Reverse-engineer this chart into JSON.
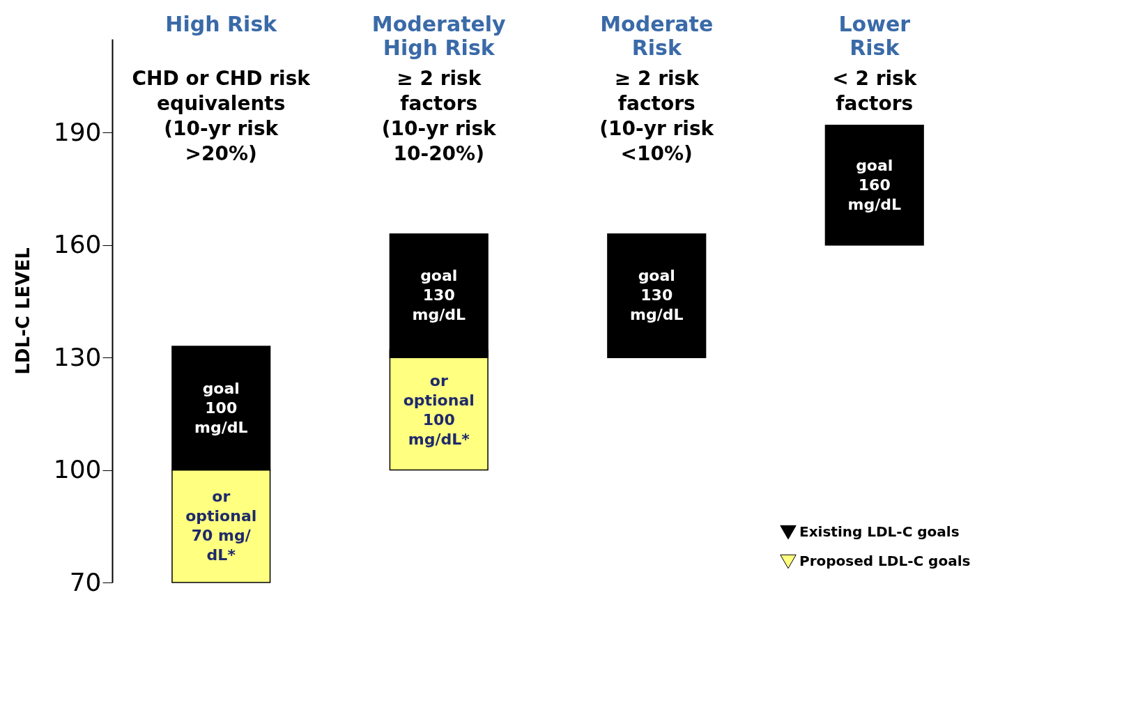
{
  "chart_data": {
    "type": "bar",
    "ylabel": "LDL-C  LEVEL",
    "categories": [
      "High Risk",
      "Moderately\nHigh Risk",
      "Moderate\nRisk",
      "Lower\nRisk"
    ],
    "series": [
      {
        "name": "Proposed LDL-C goals",
        "color": "#ffff80",
        "base": [
          70,
          100,
          null,
          null
        ],
        "values": [
          30,
          32,
          null,
          null
        ],
        "value_labels": [
          "or\noptional\n70 mg/\ndL*",
          "or\noptional\n100\nmg/dL*",
          null,
          null
        ]
      },
      {
        "name": "Existing LDL-C goals",
        "color": "#000000",
        "base": [
          100,
          130,
          130,
          160
        ],
        "values": [
          33,
          33,
          33,
          32
        ],
        "value_labels": [
          "goal\n100\nmg/dL",
          "goal\n130\nmg/dL",
          "goal\n130\nmg/dL",
          "goal\n160\nmg/dL"
        ]
      }
    ],
    "ylim": [
      70,
      215
    ],
    "yticks": [
      70,
      100,
      130,
      160,
      190
    ],
    "grid": false,
    "legend": "bottom right",
    "annotations": [
      "CHD or CHD risk\nequivalents\n\n(10-yr risk\n>20%)",
      "≥ 2 risk\nfactors\n\n(10-yr risk\n10-20%)",
      "≥ 2 risk\nfactors\n\n(10-yr risk\n<10%)",
      "< 2 risk\nfactors"
    ]
  }
}
